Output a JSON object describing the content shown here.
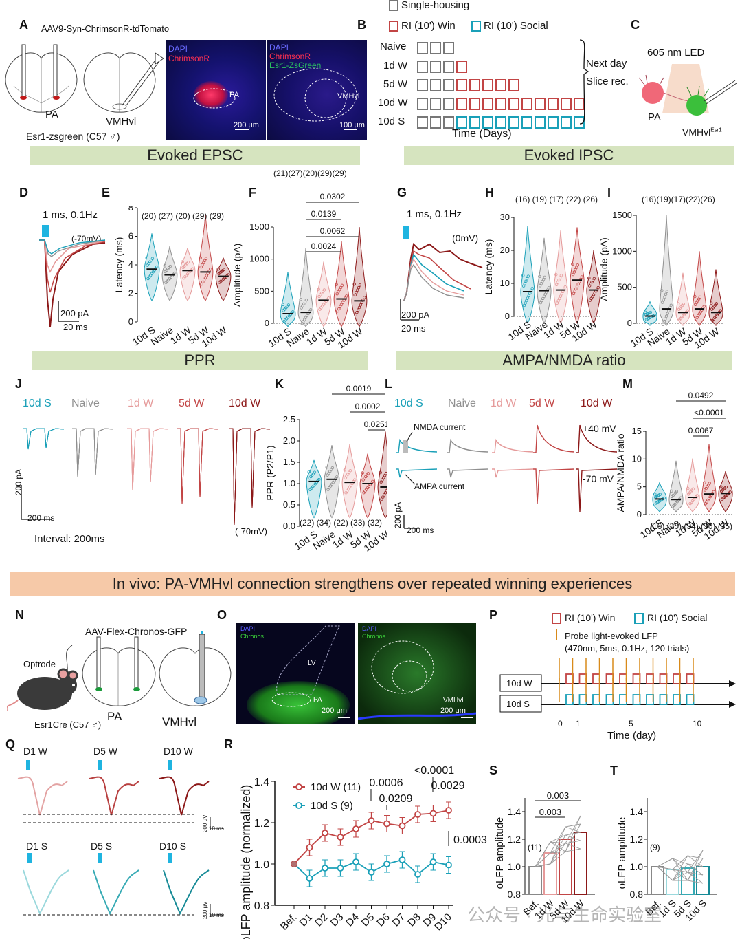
{
  "colors": {
    "s10": "#1aa0b8",
    "naive": "#8f8f8f",
    "w1": "#e59a9a",
    "w5": "#c24545",
    "w10": "#8c1818",
    "banner": "#d6e4bf",
    "orange": "#f6c9a8",
    "led": "#1fb4e0"
  },
  "panels": {
    "A": "A",
    "B": "B",
    "C": "C",
    "D": "D",
    "E": "E",
    "F": "F",
    "G": "G",
    "H": "H",
    "I": "I",
    "J": "J",
    "K": "K",
    "L": "L",
    "M": "M",
    "N": "N",
    "O": "O",
    "P": "P",
    "Q": "Q",
    "R": "R",
    "S": "S",
    "T": "T"
  },
  "A": {
    "virus": "AAV9-Syn-ChrimsonR-tdTomato",
    "pa": "PA",
    "vmhvl": "VMHvl",
    "mouse": "Esr1-zsgreen (C57 ♂)",
    "img1_dapi": "DAPI",
    "img1_chr": "ChrimsonR",
    "img1_region": "PA",
    "img1_scale": "200 μm",
    "img2_dapi": "DAPI",
    "img2_chr": "ChrimsonR",
    "img2_esr": "Esr1-ZsGreen",
    "img2_region": "VMHvl",
    "img2_scale": "100 μm"
  },
  "B": {
    "legend_single": "Single-housing",
    "legend_win": "RI (10') Win",
    "legend_social": "RI (10') Social",
    "rows": [
      "Naive",
      "1d W",
      "5d W",
      "10d W",
      "10d S"
    ],
    "next_day": "Next day",
    "slice": "Slice rec.",
    "xlabel": "Time (Days)"
  },
  "C": {
    "led": "605 nm LED",
    "pa": "PA",
    "vmhvl": "VMHvl",
    "sup": "Esr1"
  },
  "banners": {
    "epsc": "Evoked EPSC",
    "ipsc": "Evoked IPSC",
    "ppr": "PPR",
    "ampa": "AMPA/NMDA ratio",
    "invivo": "In vivo: PA-VMHvl connection strengthens over repeated winning experiences"
  },
  "D": {
    "stim": "1 ms, 0.1Hz",
    "hold": "(-70mV)",
    "scale_y": "200 pA",
    "scale_x": "20 ms"
  },
  "E": {
    "ylabel": "Latency (ms)",
    "ns": "(20) (27) (20) (29) (29)",
    "yticks": [
      "0",
      "2",
      "4",
      "6",
      "8"
    ],
    "groups": [
      "10d S",
      "Naive",
      "1d W",
      "5d W",
      "10d W"
    ],
    "medians": [
      3.7,
      3.3,
      3.6,
      3.5,
      3.2
    ],
    "ymax": 8
  },
  "F": {
    "header_ns": "(21)(27)(20)(29)(29)",
    "ylabel": "Amplitude (pA)",
    "yticks": [
      "0",
      "500",
      "1000",
      "1500"
    ],
    "groups": [
      "10d S",
      "Naive",
      "1d W",
      "5d W",
      "10d W"
    ],
    "pvals": [
      "0.0302",
      "0.0139",
      "0.0062",
      "0.0024"
    ],
    "medians": [
      150,
      170,
      360,
      380,
      350
    ],
    "ymax": 1500
  },
  "G": {
    "stim": "1 ms, 0.1Hz",
    "hold": "(0mV)",
    "scale_y": "200 pA",
    "scale_x": "20 ms"
  },
  "H": {
    "ylabel": "Latency (ms)",
    "ns": "(16) (19) (17) (22) (26)",
    "yticks": [
      "0",
      "10",
      "20",
      "30"
    ],
    "groups": [
      "10d S",
      "Naive",
      "1d W",
      "5d W",
      "10d W"
    ],
    "medians": [
      7.5,
      7.8,
      8,
      11,
      8
    ],
    "ymax": 30
  },
  "I": {
    "ylabel": "Amplitude (pA)",
    "ns": "(16)(19)(17)(22)(26)",
    "yticks": [
      "0",
      "500",
      "1000",
      "1500"
    ],
    "groups": [
      "10d S",
      "Naive",
      "1d W",
      "5d W",
      "10d W"
    ],
    "medians": [
      100,
      200,
      150,
      200,
      150
    ],
    "ymax": 1500
  },
  "J": {
    "labels": [
      "10d S",
      "Naive",
      "1d W",
      "5d W",
      "10d W"
    ],
    "scale_y": "200 pA",
    "scale_x": "200 ms",
    "interval": "Interval: 200ms",
    "hold": "(-70mV)"
  },
  "K": {
    "ylabel": "PPR (P2/P1)",
    "ns": "(22) (34) (22) (33) (32)",
    "yticks": [
      "0.0",
      "0.5",
      "1.0",
      "1.5",
      "2.0",
      "2.5"
    ],
    "groups": [
      "10d S",
      "Naive",
      "1d W",
      "5d W",
      "10d W"
    ],
    "pvals": [
      "0.0019",
      "0.0002",
      "0.0251"
    ],
    "medians": [
      1.05,
      1.1,
      1.03,
      1.0,
      0.92
    ],
    "ymax": 2.5
  },
  "L": {
    "labels": [
      "10d S",
      "Naive",
      "1d W",
      "5d W",
      "10d W"
    ],
    "nmda": "NMDA current",
    "ampa": "AMPA current",
    "pos": "+40 mV",
    "neg": "-70 mV",
    "scale_y": "200 pA",
    "scale_x": "200 ms"
  },
  "M": {
    "ylabel": "AMPA/NMDA ratio",
    "ns": "(16) (30) (34) (30) (35)",
    "yticks": [
      "0",
      "5",
      "10",
      "15"
    ],
    "groups": [
      "10d S",
      "Naive",
      "1d W",
      "5d W",
      "10d W"
    ],
    "pvals": [
      "0.0492",
      "<0.0001",
      "0.0067"
    ],
    "medians": [
      2.8,
      2.7,
      3.1,
      3.7,
      3.8
    ],
    "ymax": 15
  },
  "N": {
    "virus": "AAV-Flex-Chronos-GFP",
    "optrode": "Optrode",
    "mouse": "Esr1Cre (C57 ♂)",
    "pa": "PA",
    "vmhvl": "VMHvl"
  },
  "O": {
    "dapi": "DAPI",
    "chronos": "Chronos",
    "lv": "LV",
    "pa": "PA",
    "vmhvl": "VMHvl",
    "scale1": "200 μm",
    "scale2": "200 μm"
  },
  "P": {
    "win": "RI (10') Win",
    "social": "RI (10') Social",
    "probe1": "Probe light-evoked LFP",
    "probe2": "(470nm, 5ms, 0.1Hz, 120 trials)",
    "row_w": "10d W",
    "row_s": "10d S",
    "ticks": [
      "0",
      "1",
      "5",
      "10"
    ],
    "xlabel": "Time (day)"
  },
  "Q": {
    "top": [
      "D1 W",
      "D5 W",
      "D10 W"
    ],
    "bottom": [
      "D1 S",
      "D5 S",
      "D10 S"
    ],
    "scale_y": "200 μV",
    "scale_x": "10 ms"
  },
  "R": {
    "ylabel": "oLFP amplitude (normalized)",
    "legend_w": "10d W (11)",
    "legend_s": "10d S (9)",
    "pvals": [
      "0.0006",
      "0.0209",
      "<0.0001",
      "0.0029",
      "0.0003"
    ],
    "yticks": [
      "0.8",
      "1.0",
      "1.2",
      "1.4"
    ],
    "xticks": [
      "Bef.",
      "D1",
      "D2",
      "D3",
      "D4",
      "D5",
      "D6",
      "D7",
      "D8",
      "D9",
      "D10"
    ],
    "w": [
      1.0,
      1.08,
      1.15,
      1.13,
      1.17,
      1.21,
      1.195,
      1.185,
      1.24,
      1.245,
      1.26
    ],
    "s": [
      1.0,
      0.93,
      0.98,
      0.98,
      1.01,
      0.96,
      1.0,
      1.02,
      0.95,
      1.01,
      0.995
    ],
    "ylim": [
      0.8,
      1.4
    ]
  },
  "S": {
    "ylabel": "oLFP amplitude",
    "n": "(11)",
    "pvals": [
      "0.003",
      "0.003"
    ],
    "yticks": [
      "0.8",
      "1.0",
      "1.2",
      "1.4"
    ],
    "groups": [
      "Bef.",
      "1d W",
      "5d W",
      "10d W"
    ],
    "values": [
      1.0,
      1.1,
      1.2,
      1.25
    ],
    "ylim": [
      0.8,
      1.5
    ]
  },
  "T": {
    "ylabel": "oLFP amplitude",
    "n": "(9)",
    "yticks": [
      "0.8",
      "1.0",
      "1.2",
      "1.4"
    ],
    "groups": [
      "Bef.",
      "1d S",
      "5d S",
      "10d S"
    ],
    "values": [
      1.0,
      0.98,
      0.99,
      1.0
    ],
    "ylim": [
      0.8,
      1.5
    ]
  },
  "watermark": "公众号 · 光与生命实验室",
  "chart_data": [
    {
      "type": "line",
      "title": "R",
      "xlabel": "",
      "ylabel": "oLFP amplitude (normalized)",
      "x": [
        "Bef.",
        "D1",
        "D2",
        "D3",
        "D4",
        "D5",
        "D6",
        "D7",
        "D8",
        "D9",
        "D10"
      ],
      "series": [
        {
          "name": "10d W (11)",
          "values": [
            1.0,
            1.08,
            1.15,
            1.13,
            1.17,
            1.21,
            1.195,
            1.185,
            1.24,
            1.245,
            1.26
          ]
        },
        {
          "name": "10d S (9)",
          "values": [
            1.0,
            0.93,
            0.98,
            0.98,
            1.01,
            0.96,
            1.0,
            1.02,
            0.95,
            1.01,
            0.995
          ]
        }
      ],
      "ylim": [
        0.8,
        1.4
      ]
    },
    {
      "type": "bar",
      "title": "S",
      "ylabel": "oLFP amplitude",
      "categories": [
        "Bef.",
        "1d W",
        "5d W",
        "10d W"
      ],
      "values": [
        1.0,
        1.1,
        1.2,
        1.25
      ],
      "ylim": [
        0.8,
        1.5
      ]
    },
    {
      "type": "bar",
      "title": "T",
      "ylabel": "oLFP amplitude",
      "categories": [
        "Bef.",
        "1d S",
        "5d S",
        "10d S"
      ],
      "values": [
        1.0,
        0.98,
        0.99,
        1.0
      ],
      "ylim": [
        0.8,
        1.5
      ]
    }
  ]
}
